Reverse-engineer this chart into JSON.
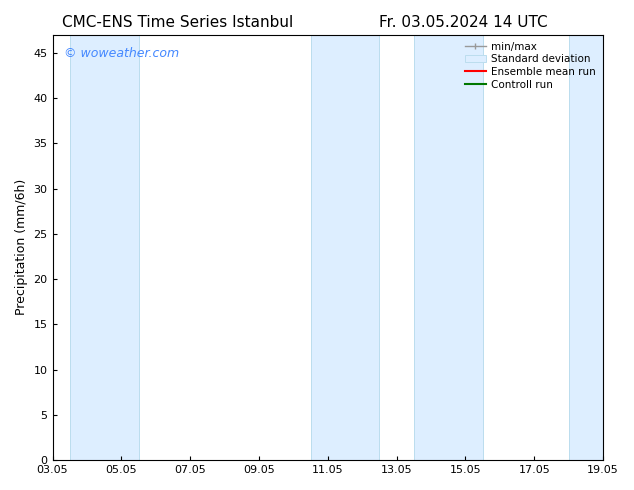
{
  "title_left": "CMC-ENS Time Series Istanbul",
  "title_right": "Fr. 03.05.2024 14 UTC",
  "ylabel": "Precipitation (mm/6h)",
  "watermark": "© woweather.com",
  "watermark_color": "#4488ff",
  "xlim_start": 0.0,
  "xlim_end": 16.0,
  "ylim": [
    0,
    47
  ],
  "yticks": [
    0,
    5,
    10,
    15,
    20,
    25,
    30,
    35,
    40,
    45
  ],
  "xtick_labels": [
    "03.05",
    "05.05",
    "07.05",
    "09.05",
    "11.05",
    "13.05",
    "15.05",
    "17.05",
    "19.05"
  ],
  "xtick_positions": [
    0,
    2,
    4,
    6,
    8,
    10,
    12,
    14,
    16
  ],
  "shaded_regions": [
    [
      0.5,
      2.5
    ],
    [
      7.5,
      9.5
    ],
    [
      10.5,
      12.5
    ],
    [
      15.0,
      16.5
    ]
  ],
  "shaded_color": "#ddeeff",
  "shaded_edge_color": "#bbddee",
  "background_color": "#ffffff",
  "plot_bg_color": "#ffffff",
  "tick_fontsize": 8,
  "label_fontsize": 9,
  "title_fontsize": 11
}
